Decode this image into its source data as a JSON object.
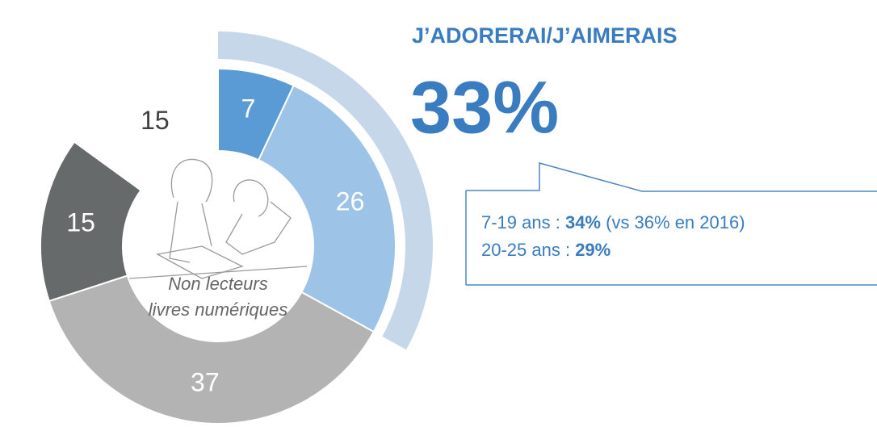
{
  "chart_data": {
    "type": "pie",
    "values": [
      7,
      26,
      37,
      15,
      15
    ],
    "colors": [
      "#5b9bd5",
      "#9dc3e6",
      "#b3b3b3",
      "#676a6a",
      "#ffffff"
    ],
    "center_label": [
      "Non lecteurs",
      "livres numériques"
    ],
    "title": "J’ADORERAI/J’AIMERAIS",
    "highlight": {
      "value": 33,
      "label": "33%"
    },
    "callout": [
      [
        "7-19 ans : ",
        "34%",
        " (vs 36% en 2016)"
      ],
      [
        "20-25 ans : ",
        "29%"
      ]
    ],
    "highlight_color": "#c5d7e8",
    "text_color": "#3a7cc0"
  }
}
